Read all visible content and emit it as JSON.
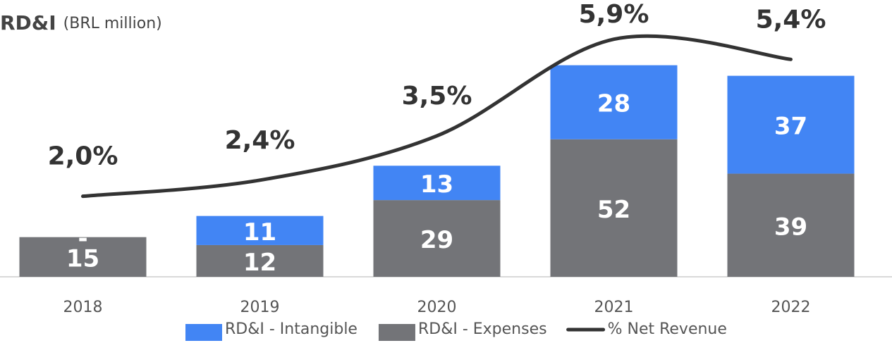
{
  "chart_data": {
    "type": "bar",
    "title": "RD&I",
    "subtitle": "(BRL million)",
    "categories": [
      "2018",
      "2019",
      "2020",
      "2021",
      "2022"
    ],
    "stacked": true,
    "ylim": [
      0,
      102
    ],
    "y2lim": [
      0,
      6.7
    ],
    "series": [
      {
        "name": "RD&I - Intangible",
        "color": "#4285f4",
        "values": [
          0,
          11,
          13,
          28,
          37
        ],
        "value_labels": [
          "-",
          "11",
          "13",
          "28",
          "37"
        ],
        "stack_order": 1
      },
      {
        "name": "RD&I - Expenses",
        "color": "#737478",
        "values": [
          15,
          12,
          29,
          52,
          39
        ],
        "stack_order": 0
      },
      {
        "name": "% Net Revenue",
        "type": "line",
        "axis": "y2",
        "color": "#333333",
        "values": [
          2.0,
          2.4,
          3.5,
          5.9,
          5.4
        ],
        "value_labels": [
          "2,0%",
          "2,4%",
          "3,5%",
          "5,9%",
          "5,4%"
        ]
      }
    ]
  }
}
